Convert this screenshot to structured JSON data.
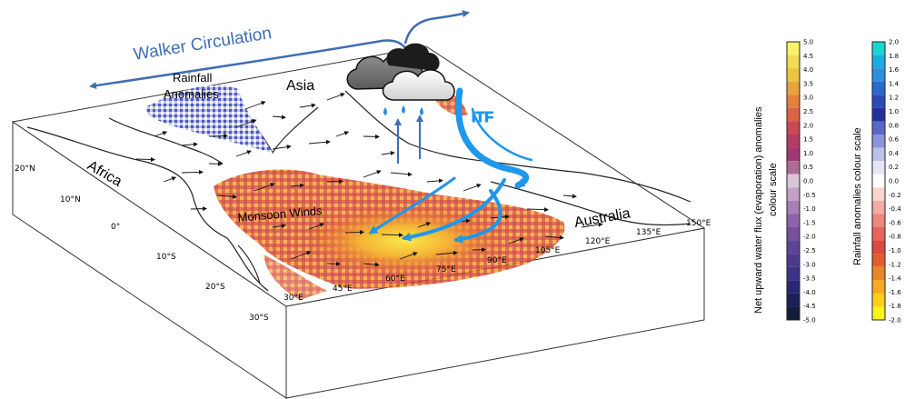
{
  "labels": {
    "walker": "Walker Circulation",
    "rainfall_1": "Rainfall",
    "rainfall_2": "Anomalies",
    "asia": "Asia",
    "africa": "Africa",
    "australia": "Australia",
    "monsoon": "Monsoon Winds",
    "itf": "ITF"
  },
  "lat_ticks": [
    "20°N",
    "10°N",
    "0°",
    "10°S",
    "20°S",
    "30°S"
  ],
  "lon_ticks": [
    "30°E",
    "45°E",
    "60°E",
    "75°E",
    "90°E",
    "105°E",
    "120°E",
    "135°E",
    "150°E"
  ],
  "colorbar_flux": {
    "title_1": "Net upward water flux (evaporation) anomalies",
    "title_2": "colour scale",
    "ticks": [
      "5.0",
      "4.5",
      "4.0",
      "3.5",
      "3.0",
      "2.5",
      "2.0",
      "1.5",
      "1.0",
      "0.5",
      "0.0",
      "-0.5",
      "-1.0",
      "-1.5",
      "-2.0",
      "-2.5",
      "-3.0",
      "-3.5",
      "-4.0",
      "-4.5",
      "-5.0"
    ],
    "colors": [
      "#f7f26a",
      "#f3dc55",
      "#eec244",
      "#e9a23c",
      "#e3813c",
      "#d96444",
      "#c64a55",
      "#b33b66",
      "#a33773",
      "#b06b95",
      "#d8c7d8",
      "#c1a1c6",
      "#a67fb8",
      "#8c63aa",
      "#74509e",
      "#5f4397",
      "#4d3a90",
      "#3d3189",
      "#2a2777",
      "#1c1f5c",
      "#111b3a"
    ]
  },
  "colorbar_rain": {
    "title": "Rainfall anomalies colour scale",
    "ticks": [
      "2.0",
      "1.8",
      "1.6",
      "1.4",
      "1.2",
      "1.0",
      "0.8",
      "0.6",
      "0.4",
      "0.2",
      "0.0",
      "-0.2",
      "-0.4",
      "-0.6",
      "-0.8",
      "-1.0",
      "-1.2",
      "-1.4",
      "-1.6",
      "-1.8",
      "-2.0"
    ],
    "colors": [
      "#17d6d0",
      "#1aaee0",
      "#2b8ee0",
      "#2b68cf",
      "#2a4ab8",
      "#2330a0",
      "#5a66c8",
      "#8d95da",
      "#bcc1ea",
      "#e4e6f6",
      "#ffffff",
      "#f9d4d0",
      "#f4ada6",
      "#ee867d",
      "#e8635c",
      "#e04842",
      "#e35e2d",
      "#ec8525",
      "#f4ab1f",
      "#f9cf1a",
      "#fdf21a"
    ]
  }
}
